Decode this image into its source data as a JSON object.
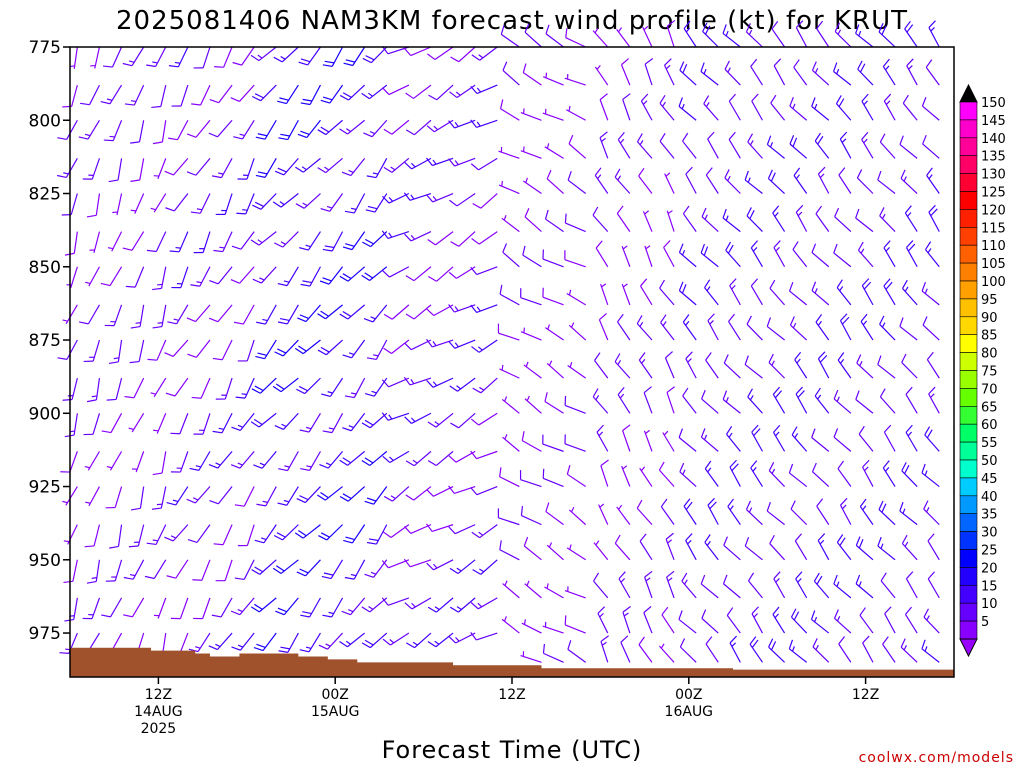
{
  "chart_data": {
    "type": "wind-barb-profile",
    "title": "2025081406 NAM3KM forecast wind profile (kt) for KRUT",
    "xlabel": "Forecast Time (UTC)",
    "ylabel": "",
    "y_axis": {
      "unit": "hPa",
      "range": [
        990,
        775
      ],
      "reversed": true,
      "ticks": [
        "775",
        "800",
        "825",
        "850",
        "875",
        "900",
        "925",
        "950",
        "975"
      ]
    },
    "x_axis": {
      "start_hour": 6,
      "end_hour": 66,
      "ticks": [
        {
          "hour": 12,
          "lines": [
            "12Z",
            "14AUG",
            "2025"
          ]
        },
        {
          "hour": 24,
          "lines": [
            "00Z",
            "15AUG"
          ]
        },
        {
          "hour": 36,
          "lines": [
            "12Z"
          ]
        },
        {
          "hour": 48,
          "lines": [
            "00Z",
            "16AUG"
          ]
        },
        {
          "hour": 60,
          "lines": [
            "12Z"
          ]
        }
      ]
    },
    "colorbar": {
      "labels": [
        "150",
        "145",
        "140",
        "135",
        "130",
        "125",
        "120",
        "115",
        "110",
        "105",
        "100",
        "95",
        "90",
        "85",
        "80",
        "75",
        "70",
        "65",
        "60",
        "55",
        "50",
        "45",
        "40",
        "35",
        "30",
        "25",
        "20",
        "15",
        "10",
        "5"
      ],
      "colors": [
        "#ff00ff",
        "#ff00cc",
        "#ff0099",
        "#ff0066",
        "#ff0033",
        "#ff0000",
        "#ff2000",
        "#ff4000",
        "#ff6000",
        "#ff8000",
        "#ffa000",
        "#ffc000",
        "#ffd800",
        "#ffff00",
        "#ccff00",
        "#99ff00",
        "#66ff00",
        "#33ff33",
        "#00ff66",
        "#00ff99",
        "#00ffcc",
        "#00ccff",
        "#0099ff",
        "#0066ff",
        "#0033ff",
        "#0000ff",
        "#2200ff",
        "#4400ff",
        "#6600ff",
        "#8800ff"
      ],
      "top_arrow_color": "#000000",
      "bottom_arrow_color": "#9900ff"
    },
    "terrain": {
      "color": "#a0522d",
      "surface_pressure": [
        {
          "hour": 6,
          "p": 980
        },
        {
          "hour": 10,
          "p": 980
        },
        {
          "hour": 11.5,
          "p": 981
        },
        {
          "hour": 14.5,
          "p": 982
        },
        {
          "hour": 15.5,
          "p": 983
        },
        {
          "hour": 17.5,
          "p": 982
        },
        {
          "hour": 21.5,
          "p": 983
        },
        {
          "hour": 23.5,
          "p": 984
        },
        {
          "hour": 25.5,
          "p": 985
        },
        {
          "hour": 32,
          "p": 986
        },
        {
          "hour": 38,
          "p": 987
        },
        {
          "hour": 48,
          "p": 987
        },
        {
          "hour": 51,
          "p": 987.5
        },
        {
          "hour": 66,
          "p": 986
        }
      ]
    },
    "barb_grid": {
      "hour_step": 1.5,
      "levels_hpa": [
        775,
        788,
        800,
        813,
        825,
        838,
        850,
        863,
        875,
        888,
        900,
        913,
        925,
        938,
        950,
        963,
        975,
        985
      ]
    },
    "wind_regimes": [
      {
        "from_hour": 6,
        "to_hour": 14,
        "dir_deg": 200,
        "speed_kt": 10
      },
      {
        "from_hour": 14,
        "to_hour": 20,
        "dir_deg": 210,
        "speed_kt": 12
      },
      {
        "from_hour": 20,
        "to_hour": 28,
        "dir_deg": 220,
        "speed_kt": 18
      },
      {
        "from_hour": 28,
        "to_hour": 36,
        "dir_deg": 240,
        "speed_kt": 12
      },
      {
        "from_hour": 36,
        "to_hour": 42,
        "dir_deg": 300,
        "speed_kt": 8
      },
      {
        "from_hour": 42,
        "to_hour": 48,
        "dir_deg": 330,
        "speed_kt": 10
      },
      {
        "from_hour": 48,
        "to_hour": 66,
        "dir_deg": 320,
        "speed_kt": 14
      }
    ],
    "credit": "coolwx.com/models"
  }
}
